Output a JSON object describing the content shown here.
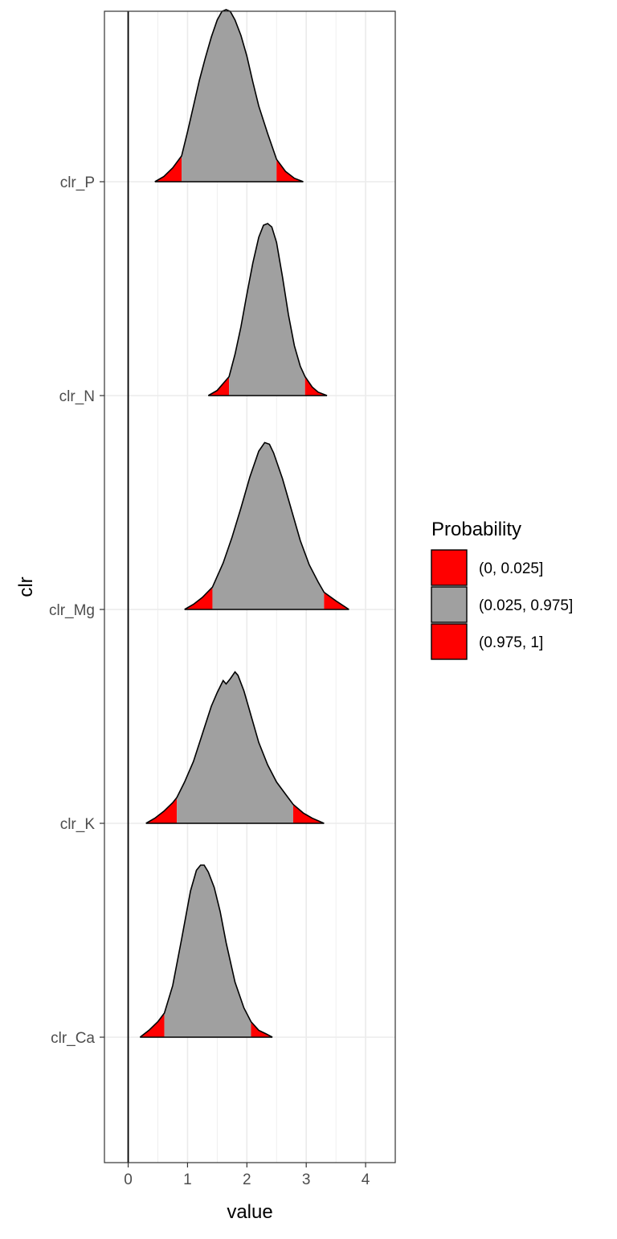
{
  "chart_data": {
    "type": "ridgeline-density",
    "title": "",
    "xlabel": "value",
    "ylabel": "clr",
    "xlim": [
      -0.4,
      4.5
    ],
    "x_ticks": [
      0,
      1,
      2,
      3,
      4
    ],
    "reference_line_x": 0,
    "grid": true,
    "theme": "bw",
    "legend": {
      "title": "Probability",
      "placement": "right",
      "entries": [
        {
          "label": "(0, 0.025]",
          "color": "#ff0000"
        },
        {
          "label": "(0.025, 0.975]",
          "color": "#a0a0a0"
        },
        {
          "label": "(0.975, 1]",
          "color": "#ff0000"
        }
      ]
    },
    "colors": {
      "tail": "#ff0000",
      "middle": "#a0a0a0",
      "outline": "#000000"
    },
    "categories": [
      "clr_Ca",
      "clr_K",
      "clr_Mg",
      "clr_N",
      "clr_P"
    ],
    "series": [
      {
        "name": "clr_Ca",
        "q025": 0.61,
        "q975": 2.07,
        "density": {
          "x": [
            0.2,
            0.35,
            0.5,
            0.61,
            0.75,
            0.9,
            1.05,
            1.15,
            1.22,
            1.28,
            1.35,
            1.45,
            1.55,
            1.65,
            1.8,
            1.95,
            2.07,
            2.2,
            2.32,
            2.43
          ],
          "y": [
            0.0,
            0.04,
            0.09,
            0.14,
            0.3,
            0.57,
            0.85,
            0.97,
            1.0,
            1.0,
            0.96,
            0.87,
            0.73,
            0.55,
            0.32,
            0.17,
            0.09,
            0.04,
            0.02,
            0.0
          ]
        }
      },
      {
        "name": "clr_K",
        "q025": 0.82,
        "q975": 2.78,
        "density": {
          "x": [
            0.3,
            0.45,
            0.6,
            0.75,
            0.82,
            0.95,
            1.1,
            1.25,
            1.4,
            1.5,
            1.6,
            1.65,
            1.72,
            1.8,
            1.85,
            1.95,
            2.05,
            2.2,
            2.35,
            2.5,
            2.65,
            2.78,
            2.95,
            3.1,
            3.3
          ],
          "y": [
            0.0,
            0.03,
            0.07,
            0.12,
            0.15,
            0.24,
            0.36,
            0.52,
            0.68,
            0.76,
            0.83,
            0.81,
            0.84,
            0.88,
            0.86,
            0.77,
            0.65,
            0.47,
            0.34,
            0.24,
            0.17,
            0.11,
            0.06,
            0.03,
            0.0
          ]
        }
      },
      {
        "name": "clr_Mg",
        "q025": 1.42,
        "q975": 3.3,
        "density": {
          "x": [
            0.95,
            1.1,
            1.25,
            1.42,
            1.6,
            1.75,
            1.9,
            2.05,
            2.2,
            2.3,
            2.38,
            2.45,
            2.6,
            2.75,
            2.9,
            3.05,
            3.2,
            3.3,
            3.5,
            3.72
          ],
          "y": [
            0.0,
            0.03,
            0.07,
            0.13,
            0.27,
            0.42,
            0.59,
            0.77,
            0.92,
            0.97,
            0.96,
            0.91,
            0.76,
            0.58,
            0.4,
            0.26,
            0.16,
            0.1,
            0.05,
            0.0
          ]
        }
      },
      {
        "name": "clr_N",
        "q025": 1.7,
        "q975": 2.98,
        "density": {
          "x": [
            1.35,
            1.5,
            1.6,
            1.7,
            1.8,
            1.9,
            2.0,
            2.1,
            2.2,
            2.28,
            2.35,
            2.42,
            2.5,
            2.6,
            2.7,
            2.8,
            2.9,
            2.98,
            3.1,
            3.2,
            3.35
          ],
          "y": [
            0.0,
            0.03,
            0.07,
            0.11,
            0.24,
            0.4,
            0.59,
            0.77,
            0.92,
            0.99,
            1.0,
            0.98,
            0.89,
            0.69,
            0.47,
            0.29,
            0.17,
            0.11,
            0.05,
            0.02,
            0.0
          ]
        }
      },
      {
        "name": "clr_P",
        "q025": 0.9,
        "q975": 2.5,
        "density": {
          "x": [
            0.45,
            0.6,
            0.75,
            0.9,
            1.0,
            1.1,
            1.2,
            1.3,
            1.4,
            1.5,
            1.58,
            1.65,
            1.72,
            1.8,
            1.9,
            2.0,
            2.1,
            2.2,
            2.35,
            2.5,
            2.65,
            2.8,
            2.95
          ],
          "y": [
            0.0,
            0.03,
            0.08,
            0.15,
            0.29,
            0.44,
            0.59,
            0.72,
            0.84,
            0.94,
            0.99,
            1.0,
            0.99,
            0.94,
            0.85,
            0.73,
            0.58,
            0.44,
            0.28,
            0.13,
            0.06,
            0.02,
            0.0
          ]
        }
      }
    ]
  }
}
